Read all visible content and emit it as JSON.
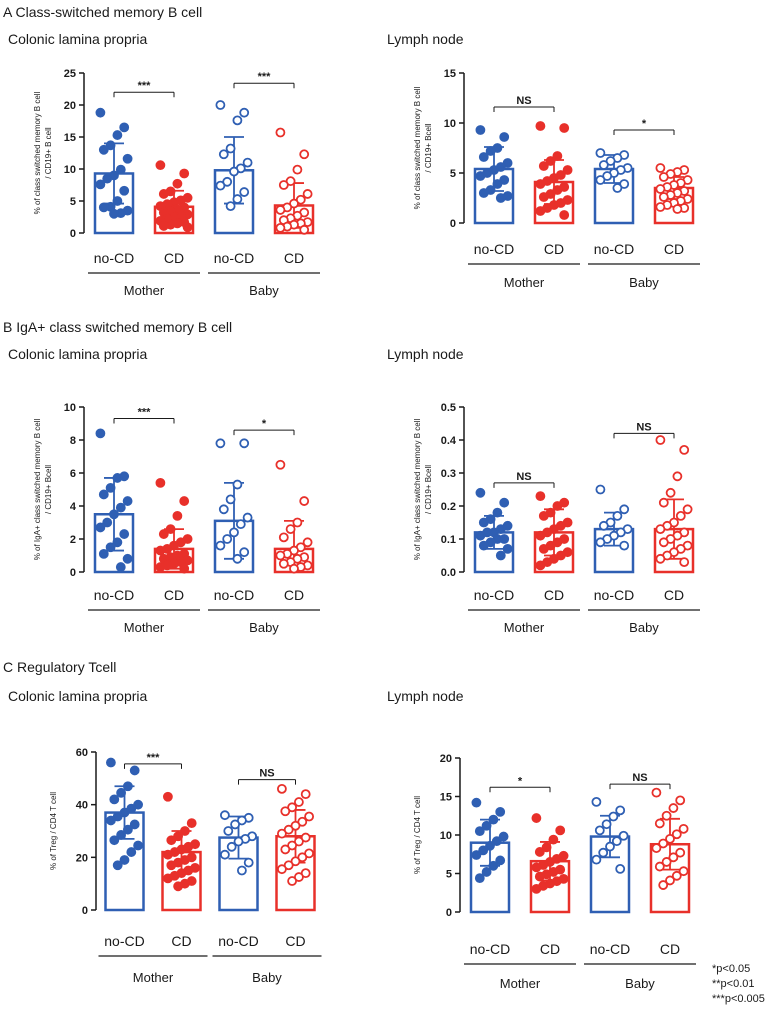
{
  "sections": [
    {
      "letter": "A",
      "title": "Class-switched memory B cell"
    },
    {
      "letter": "B",
      "title": "IgA+ class switched memory B cell"
    },
    {
      "letter": "C",
      "title": "Regulatory Tcell"
    }
  ],
  "tissues": [
    "Colonic lamina propria",
    "Lymph node"
  ],
  "legend": [
    "*p<0.05",
    "**p<0.01",
    "***p<0.005"
  ],
  "colors": {
    "no_cd": "#2f5fb3",
    "cd": "#e8302a"
  },
  "chart_data": [
    {
      "type": "bar",
      "section": "A",
      "tissue": "Colonic lamina propria",
      "ylabel": [
        "% of class switched memory B cell",
        "/ CD19+ B cell"
      ],
      "ylim": [
        0,
        25
      ],
      "yticks": [
        0,
        5,
        10,
        15,
        20,
        25
      ],
      "categories": [
        "no-CD",
        "CD",
        "no-CD",
        "CD"
      ],
      "groups": [
        "Mother",
        "Baby"
      ],
      "series": [
        {
          "group": "Mother",
          "category": "no-CD",
          "mean": 9.3,
          "sd": 4.7,
          "points": [
            18.8,
            16.5,
            15.3,
            13.7,
            13.0,
            11.6,
            9.9,
            9.0,
            8.5,
            7.6,
            6.6,
            5.0,
            4.1,
            4.0,
            3.5,
            3.1,
            3.0
          ]
        },
        {
          "group": "Mother",
          "category": "CD",
          "mean": 4.1,
          "sd": 2.5,
          "points": [
            10.6,
            9.3,
            7.7,
            6.5,
            6.1,
            5.5,
            5.1,
            4.8,
            4.5,
            4.2,
            4.0,
            3.7,
            3.4,
            3.2,
            2.9,
            2.7,
            2.4,
            2.2,
            1.9,
            1.7,
            1.5,
            1.3,
            1.1,
            0.9
          ]
        },
        {
          "group": "Baby",
          "category": "no-CD",
          "mean": 9.8,
          "sd": 5.2,
          "points": [
            20.0,
            18.8,
            17.6,
            13.2,
            12.3,
            11.0,
            10.1,
            9.6,
            8.0,
            7.4,
            6.4,
            5.3,
            4.2
          ]
        },
        {
          "group": "Baby",
          "category": "CD",
          "mean": 4.3,
          "sd": 3.5,
          "points": [
            15.7,
            12.3,
            9.9,
            8.1,
            7.5,
            6.1,
            5.2,
            4.6,
            4.0,
            3.6,
            3.2,
            2.7,
            2.3,
            2.0,
            1.7,
            1.5,
            1.3,
            1.0,
            0.8,
            0.5
          ]
        }
      ],
      "significance": [
        {
          "group": "Mother",
          "label": "***",
          "y": 22.0
        },
        {
          "group": "Baby",
          "label": "***",
          "y": 23.4
        }
      ]
    },
    {
      "type": "bar",
      "section": "A",
      "tissue": "Lymph node",
      "ylabel": [
        "% of class switched memory B cell",
        "/ CD19+ Bcell"
      ],
      "ylim": [
        0,
        15
      ],
      "yticks": [
        0,
        5,
        10,
        15
      ],
      "categories": [
        "no-CD",
        "CD",
        "no-CD",
        "CD"
      ],
      "groups": [
        "Mother",
        "Baby"
      ],
      "series": [
        {
          "group": "Mother",
          "category": "no-CD",
          "mean": 5.4,
          "sd": 2.2,
          "points": [
            9.3,
            8.6,
            7.5,
            7.2,
            6.6,
            6.0,
            5.6,
            5.3,
            5.0,
            4.7,
            4.3,
            3.9,
            3.3,
            3.0,
            2.7,
            2.5
          ]
        },
        {
          "group": "Mother",
          "category": "CD",
          "mean": 4.1,
          "sd": 2.2,
          "points": [
            9.7,
            9.5,
            6.7,
            6.2,
            5.7,
            5.3,
            4.8,
            4.5,
            4.2,
            3.9,
            3.6,
            3.3,
            2.9,
            2.6,
            2.3,
            2.0,
            1.8,
            1.5,
            1.2,
            0.8
          ]
        },
        {
          "group": "Baby",
          "category": "no-CD",
          "mean": 5.4,
          "sd": 1.4,
          "points": [
            7.0,
            6.8,
            6.5,
            6.2,
            5.8,
            5.5,
            5.3,
            5.0,
            4.7,
            4.3,
            3.9,
            3.5
          ]
        },
        {
          "group": "Baby",
          "category": "CD",
          "mean": 3.5,
          "sd": 1.1,
          "points": [
            5.5,
            5.3,
            5.1,
            4.9,
            4.6,
            4.3,
            4.0,
            3.8,
            3.6,
            3.4,
            3.2,
            3.0,
            2.8,
            2.6,
            2.4,
            2.2,
            2.0,
            1.8,
            1.6,
            1.5,
            1.4
          ]
        }
      ],
      "significance": [
        {
          "group": "Mother",
          "label": "NS",
          "y": 11.6
        },
        {
          "group": "Baby",
          "label": "*",
          "y": 9.3
        }
      ]
    },
    {
      "type": "bar",
      "section": "B",
      "tissue": "Colonic lamina propria",
      "ylabel": [
        "% of IgA+ class switched memory B cell",
        "/ CD19+ Bcell"
      ],
      "ylim": [
        0,
        10
      ],
      "yticks": [
        0,
        2,
        4,
        6,
        8,
        10
      ],
      "categories": [
        "no-CD",
        "CD",
        "no-CD",
        "CD"
      ],
      "groups": [
        "Mother",
        "Baby"
      ],
      "series": [
        {
          "group": "Mother",
          "category": "no-CD",
          "mean": 3.5,
          "sd": 2.2,
          "points": [
            8.4,
            5.8,
            5.7,
            5.1,
            4.7,
            4.3,
            3.9,
            3.5,
            3.0,
            2.7,
            2.3,
            1.8,
            1.5,
            1.1,
            0.8,
            0.3
          ]
        },
        {
          "group": "Mother",
          "category": "CD",
          "mean": 1.4,
          "sd": 1.2,
          "points": [
            5.4,
            4.3,
            3.4,
            2.6,
            2.3,
            2.0,
            1.8,
            1.6,
            1.4,
            1.3,
            1.1,
            1.0,
            0.9,
            0.8,
            0.7,
            0.6,
            0.5,
            0.4,
            0.3,
            0.2
          ]
        },
        {
          "group": "Baby",
          "category": "no-CD",
          "mean": 3.1,
          "sd": 2.3,
          "points": [
            7.8,
            7.8,
            5.3,
            4.4,
            3.8,
            3.3,
            2.9,
            2.4,
            2.0,
            1.6,
            1.2,
            0.8
          ]
        },
        {
          "group": "Baby",
          "category": "CD",
          "mean": 1.4,
          "sd": 1.7,
          "points": [
            6.5,
            4.3,
            3.0,
            2.6,
            2.1,
            1.8,
            1.5,
            1.3,
            1.1,
            1.0,
            0.9,
            0.8,
            0.6,
            0.5,
            0.4,
            0.3,
            0.2
          ]
        }
      ],
      "significance": [
        {
          "group": "Mother",
          "label": "***",
          "y": 9.3
        },
        {
          "group": "Baby",
          "label": "*",
          "y": 8.6
        }
      ]
    },
    {
      "type": "bar",
      "section": "B",
      "tissue": "Lymph node",
      "ylabel": [
        "% of IgA+ class switched memory B cell",
        "/ CD19+ Bcell"
      ],
      "ylim": [
        0,
        0.5
      ],
      "yticks": [
        0.0,
        0.1,
        0.2,
        0.3,
        0.4,
        0.5
      ],
      "categories": [
        "no-CD",
        "CD",
        "no-CD",
        "CD"
      ],
      "groups": [
        "Mother",
        "Baby"
      ],
      "series": [
        {
          "group": "Mother",
          "category": "no-CD",
          "mean": 0.12,
          "sd": 0.05,
          "points": [
            0.24,
            0.21,
            0.18,
            0.16,
            0.15,
            0.14,
            0.13,
            0.12,
            0.12,
            0.11,
            0.1,
            0.1,
            0.09,
            0.08,
            0.07,
            0.05
          ]
        },
        {
          "group": "Mother",
          "category": "CD",
          "mean": 0.12,
          "sd": 0.07,
          "points": [
            0.23,
            0.21,
            0.2,
            0.18,
            0.17,
            0.15,
            0.14,
            0.13,
            0.12,
            0.11,
            0.1,
            0.09,
            0.08,
            0.07,
            0.06,
            0.05,
            0.04,
            0.03,
            0.02
          ]
        },
        {
          "group": "Baby",
          "category": "no-CD",
          "mean": 0.13,
          "sd": 0.05,
          "points": [
            0.25,
            0.19,
            0.17,
            0.15,
            0.14,
            0.13,
            0.12,
            0.11,
            0.1,
            0.09,
            0.08
          ]
        },
        {
          "group": "Baby",
          "category": "CD",
          "mean": 0.13,
          "sd": 0.09,
          "points": [
            0.4,
            0.37,
            0.29,
            0.24,
            0.21,
            0.19,
            0.17,
            0.15,
            0.14,
            0.13,
            0.12,
            0.11,
            0.1,
            0.09,
            0.08,
            0.07,
            0.06,
            0.05,
            0.04,
            0.03
          ]
        }
      ],
      "significance": [
        {
          "group": "Mother",
          "label": "NS",
          "y": 0.27
        },
        {
          "group": "Baby",
          "label": "NS",
          "y": 0.42
        }
      ]
    },
    {
      "type": "bar",
      "section": "C",
      "tissue": "Colonic lamina propria",
      "ylabel": [
        "% of Treg / CD4 T cell"
      ],
      "ylim": [
        0,
        60
      ],
      "yticks": [
        0,
        20,
        40,
        60
      ],
      "categories": [
        "no-CD",
        "CD",
        "no-CD",
        "CD"
      ],
      "groups": [
        "Mother",
        "Baby"
      ],
      "series": [
        {
          "group": "Mother",
          "category": "no-CD",
          "mean": 37.0,
          "sd": 10.0,
          "points": [
            56.0,
            53.0,
            47.0,
            44.5,
            42.0,
            40.0,
            38.5,
            37.0,
            35.5,
            34.0,
            32.5,
            30.5,
            28.5,
            26.5,
            24.5,
            22.0,
            19.0,
            17.0
          ]
        },
        {
          "group": "Mother",
          "category": "CD",
          "mean": 22.0,
          "sd": 8.0,
          "points": [
            43.0,
            33.0,
            30.0,
            28.0,
            26.5,
            25.0,
            24.0,
            23.0,
            22.0,
            21.0,
            20.0,
            19.0,
            18.0,
            17.0,
            16.0,
            15.0,
            14.0,
            13.0,
            12.0,
            11.0,
            10.0,
            9.0
          ]
        },
        {
          "group": "Baby",
          "category": "no-CD",
          "mean": 27.5,
          "sd": 8.0,
          "points": [
            36.0,
            35.0,
            34.0,
            32.5,
            30.0,
            28.0,
            27.0,
            26.0,
            24.0,
            21.0,
            18.0,
            15.0
          ]
        },
        {
          "group": "Baby",
          "category": "CD",
          "mean": 28.0,
          "sd": 10.0,
          "points": [
            46.0,
            44.0,
            41.0,
            39.0,
            37.5,
            35.5,
            33.5,
            32.0,
            30.5,
            29.0,
            27.5,
            26.0,
            24.5,
            23.0,
            21.5,
            20.0,
            18.5,
            17.0,
            15.5,
            14.0,
            12.5,
            11.0
          ]
        }
      ],
      "significance": [
        {
          "group": "Mother",
          "label": "***",
          "y": 55.5
        },
        {
          "group": "Baby",
          "label": "NS",
          "y": 49.5
        }
      ]
    },
    {
      "type": "bar",
      "section": "C",
      "tissue": "Lymph node",
      "ylabel": [
        "% of Treg / CD4 T cell"
      ],
      "ylim": [
        0,
        20
      ],
      "yticks": [
        0,
        5,
        10,
        15,
        20
      ],
      "categories": [
        "no-CD",
        "CD",
        "no-CD",
        "CD"
      ],
      "groups": [
        "Mother",
        "Baby"
      ],
      "series": [
        {
          "group": "Mother",
          "category": "no-CD",
          "mean": 9.0,
          "sd": 3.0,
          "points": [
            14.2,
            13.0,
            12.0,
            11.2,
            10.5,
            9.8,
            9.2,
            8.6,
            8.0,
            7.4,
            6.7,
            6.0,
            5.2,
            4.4
          ]
        },
        {
          "group": "Mother",
          "category": "CD",
          "mean": 6.6,
          "sd": 2.5,
          "points": [
            12.2,
            10.6,
            9.4,
            8.4,
            7.8,
            7.3,
            6.9,
            6.5,
            6.1,
            5.8,
            5.5,
            5.2,
            4.9,
            4.6,
            4.3,
            4.0,
            3.7,
            3.4,
            3.0
          ]
        },
        {
          "group": "Baby",
          "category": "no-CD",
          "mean": 9.8,
          "sd": 2.7,
          "points": [
            14.3,
            13.2,
            12.4,
            11.4,
            10.6,
            9.9,
            9.2,
            8.5,
            7.7,
            6.8,
            5.6
          ]
        },
        {
          "group": "Baby",
          "category": "CD",
          "mean": 8.8,
          "sd": 3.3,
          "points": [
            15.5,
            14.5,
            13.5,
            12.5,
            11.5,
            10.8,
            10.1,
            9.5,
            8.9,
            8.3,
            7.7,
            7.1,
            6.5,
            5.9,
            5.3,
            4.7,
            4.1,
            3.5
          ]
        }
      ],
      "significance": [
        {
          "group": "Mother",
          "label": "*",
          "y": 16.2
        },
        {
          "group": "Baby",
          "label": "NS",
          "y": 16.6
        }
      ]
    }
  ]
}
